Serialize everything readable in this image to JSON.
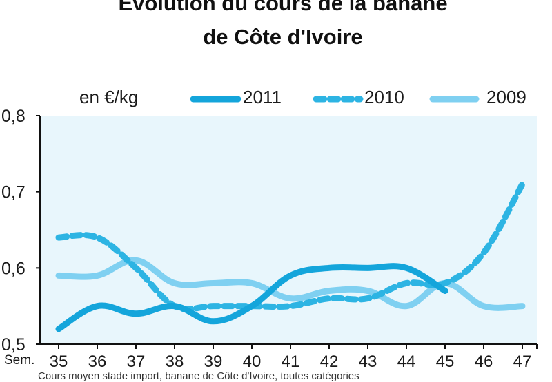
{
  "chart_data": {
    "type": "line",
    "title_line1": "Evolution du cours de la banane",
    "title_line2": "de Côte d'Ivoire",
    "unit_label": "en €/kg",
    "x_prefix": "Sem.",
    "categories": [
      "35",
      "36",
      "37",
      "38",
      "39",
      "40",
      "41",
      "42",
      "43",
      "44",
      "45",
      "46",
      "47"
    ],
    "ylim": [
      0.5,
      0.8
    ],
    "yticks": [
      "0,5",
      "0,6",
      "0,7",
      "0,8"
    ],
    "series": [
      {
        "name": "2011",
        "style": "solid",
        "color": "#14a5db",
        "values": [
          0.52,
          0.55,
          0.54,
          0.55,
          0.53,
          0.55,
          0.59,
          0.6,
          0.6,
          0.6,
          0.57,
          null,
          null
        ]
      },
      {
        "name": "2010",
        "style": "dashed",
        "color": "#2db4e3",
        "values": [
          0.64,
          0.64,
          0.6,
          0.55,
          0.55,
          0.55,
          0.55,
          0.56,
          0.56,
          0.58,
          0.58,
          0.62,
          0.71
        ]
      },
      {
        "name": "2009",
        "style": "solid",
        "color": "#7fd0f1",
        "values": [
          0.59,
          0.59,
          0.61,
          0.58,
          0.58,
          0.58,
          0.56,
          0.57,
          0.57,
          0.55,
          0.58,
          0.55,
          0.55
        ]
      }
    ],
    "footnote": "Cours moyen stade import, banane de Côte d'Ivoire, toutes catégories",
    "plot_background": "#e8f6fc",
    "legend_position": "top"
  }
}
